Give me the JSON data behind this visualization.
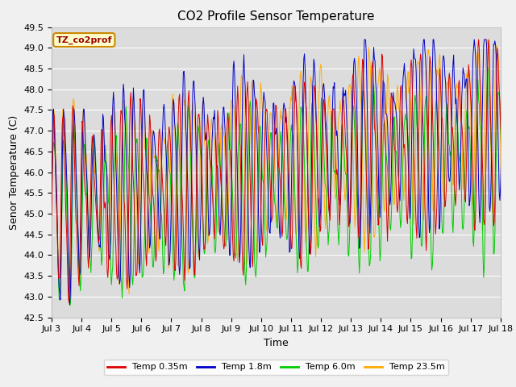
{
  "title": "CO2 Profile Sensor Temperature",
  "ylabel": "Senor Temperature (C)",
  "xlabel": "Time",
  "ylim": [
    42.5,
    49.5
  ],
  "yticks": [
    42.5,
    43.0,
    43.5,
    44.0,
    44.5,
    45.0,
    45.5,
    46.0,
    46.5,
    47.0,
    47.5,
    48.0,
    48.5,
    49.0,
    49.5
  ],
  "xtick_labels": [
    "Jul 3",
    "Jul 4",
    "Jul 5",
    "Jul 6",
    "Jul 7",
    "Jul 8",
    "Jul 9",
    "Jul 10",
    "Jul 11",
    "Jul 12",
    "Jul 13",
    "Jul 14",
    "Jul 15",
    "Jul 16",
    "Jul 17",
    "Jul 18"
  ],
  "annotation_text": "TZ_co2prof",
  "annotation_bg": "#ffffcc",
  "annotation_border": "#cc8800",
  "colors": {
    "red": "#dd0000",
    "blue": "#0000cc",
    "green": "#00cc00",
    "orange": "#ffaa00"
  },
  "legend_labels": [
    "Temp 0.35m",
    "Temp 1.8m",
    "Temp 6.0m",
    "Temp 23.5m"
  ],
  "plot_bg_color": "#dcdcdc",
  "fig_bg_color": "#f0f0f0",
  "grid_color": "#ffffff",
  "title_fontsize": 11,
  "axis_fontsize": 9,
  "tick_fontsize": 8,
  "legend_fontsize": 8
}
